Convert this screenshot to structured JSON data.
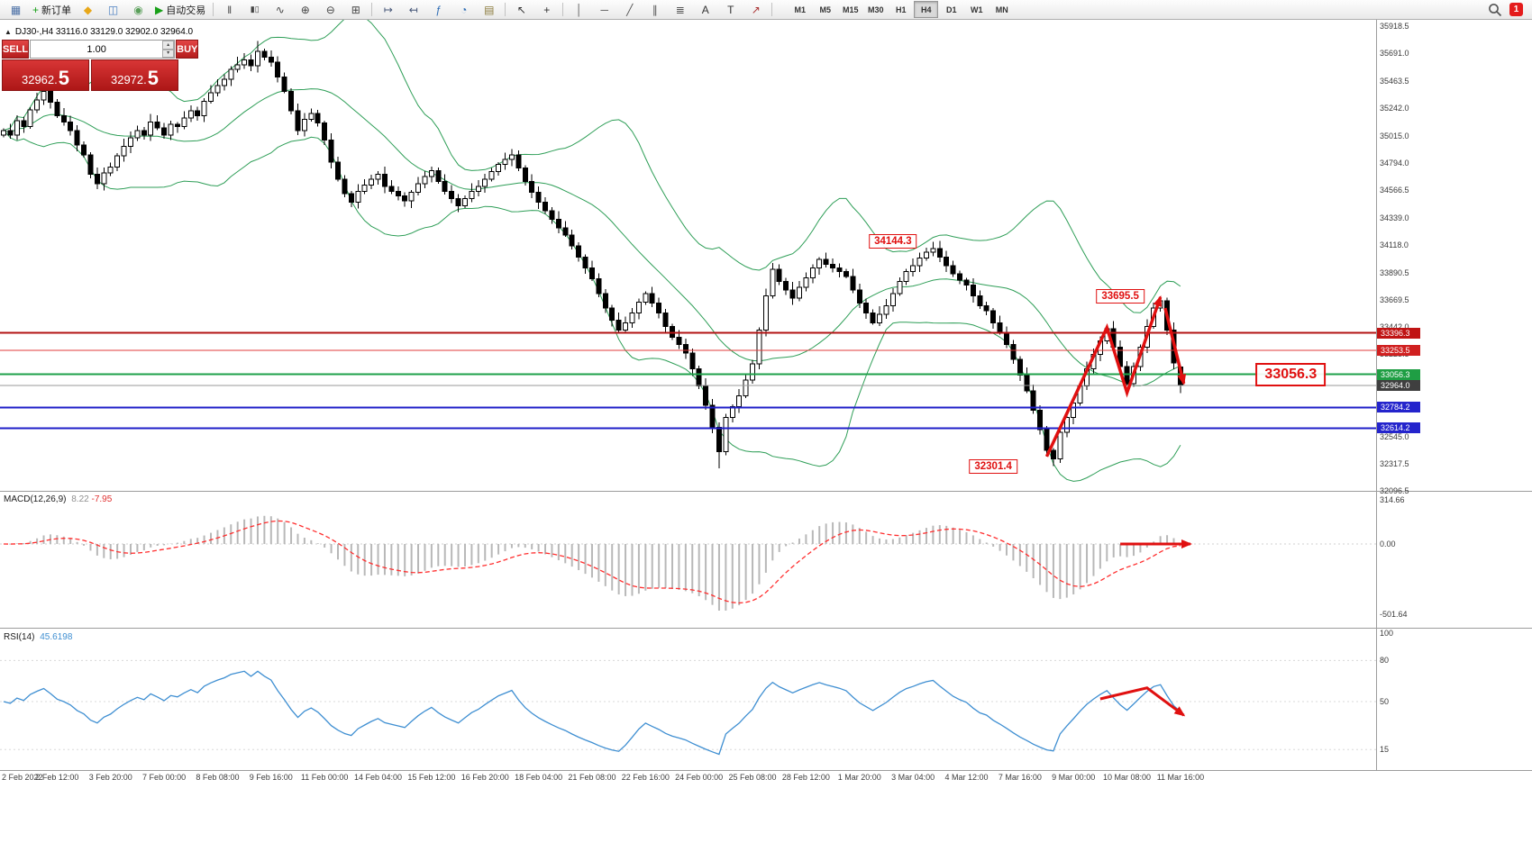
{
  "toolbar": {
    "items": [
      {
        "name": "new-chart-icon",
        "glyph": "▦",
        "color": "#4a6fa5"
      },
      {
        "name": "new-order-button",
        "icon": "plus-icon",
        "glyph": "+",
        "color": "#18a018",
        "label": "新订单"
      },
      {
        "name": "metaquotes-icon",
        "glyph": "◆",
        "color": "#e8a718"
      },
      {
        "name": "market-watch-icon",
        "glyph": "◫",
        "color": "#4a7fc1"
      },
      {
        "name": "data-window-icon",
        "glyph": "◉",
        "color": "#5a9f5a"
      },
      {
        "name": "autotrade-button",
        "icon": "play-icon",
        "glyph": "▶",
        "color": "#18a018",
        "label": "自动交易"
      },
      {
        "sep": true
      },
      {
        "name": "bar-chart-icon",
        "glyph": "‖",
        "color": "#444444"
      },
      {
        "name": "candlestick-chart-icon",
        "glyph": "▮▯",
        "color": "#444444"
      },
      {
        "name": "line-chart-icon",
        "glyph": "∿",
        "color": "#444444"
      },
      {
        "name": "zoom-in-icon",
        "glyph": "⊕",
        "color": "#444444"
      },
      {
        "name": "zoom-out-icon",
        "glyph": "⊖",
        "color": "#444444"
      },
      {
        "name": "tile-windows-icon",
        "glyph": "⊞",
        "color": "#444444"
      },
      {
        "sep": true
      },
      {
        "name": "auto-scroll-icon",
        "glyph": "↦",
        "color": "#445577"
      },
      {
        "name": "chart-shift-icon",
        "glyph": "↤",
        "color": "#445577"
      },
      {
        "name": "indicators-icon",
        "glyph": "ƒ",
        "color": "#2f6db5"
      },
      {
        "name": "periods-icon",
        "glyph": "◔",
        "color": "#2f6db5"
      },
      {
        "name": "templates-icon",
        "glyph": "▤",
        "color": "#8a7a3b"
      },
      {
        "sep": true
      },
      {
        "name": "cursor-icon",
        "glyph": "↖",
        "color": "#333333"
      },
      {
        "name": "crosshair-icon",
        "glyph": "+",
        "color": "#333333"
      },
      {
        "sep": true
      },
      {
        "name": "vertical-line-icon",
        "glyph": "│",
        "color": "#555555"
      },
      {
        "name": "horizontal-line-icon",
        "glyph": "─",
        "color": "#555555"
      },
      {
        "name": "trendline-icon",
        "glyph": "╱",
        "color": "#555555"
      },
      {
        "name": "channel-icon",
        "glyph": "∥",
        "color": "#555555"
      },
      {
        "name": "fibonacci-icon",
        "glyph": "≣",
        "color": "#555555"
      },
      {
        "name": "text-icon",
        "glyph": "A",
        "color": "#333333"
      },
      {
        "name": "label-icon",
        "glyph": "T",
        "color": "#333333"
      },
      {
        "name": "arrows-icon",
        "glyph": "↗",
        "color": "#aa3333"
      },
      {
        "sep": true
      }
    ],
    "timeframes": [
      "M1",
      "M5",
      "M15",
      "M30",
      "H1",
      "H4",
      "D1",
      "W1",
      "MN"
    ],
    "active_timeframe": "H4",
    "notification_count": "1"
  },
  "symbol_header": {
    "toggle_glyph": "▲",
    "text": "DJ30-,H4  33116.0 33129.0 32902.0 32964.0"
  },
  "trade_panel": {
    "sell_label": "SELL",
    "buy_label": "BUY",
    "lot": "1.00",
    "up_glyph": "▴",
    "down_glyph": "▾",
    "sell_main": "32962.",
    "sell_big": "5",
    "buy_main": "32972.",
    "buy_big": "5"
  },
  "chart_data": {
    "type": "candlestick",
    "symbol": "DJ30-",
    "timeframe": "H4",
    "ohlc_current": {
      "open": 33116.0,
      "high": 33129.0,
      "low": 32902.0,
      "close": 32964.0
    },
    "first_open": 35020,
    "closes": [
      35060,
      35020,
      35140,
      35090,
      35230,
      35310,
      35380,
      35290,
      35180,
      35130,
      35060,
      34940,
      34860,
      34700,
      34620,
      34710,
      34760,
      34850,
      34930,
      35000,
      35060,
      35020,
      35130,
      35080,
      35020,
      35110,
      35090,
      35160,
      35220,
      35180,
      35300,
      35370,
      35430,
      35480,
      35560,
      35600,
      35640,
      35590,
      35710,
      35660,
      35620,
      35500,
      35380,
      35220,
      35060,
      35150,
      35200,
      35120,
      34980,
      34800,
      34660,
      34540,
      34470,
      34560,
      34610,
      34660,
      34700,
      34600,
      34560,
      34520,
      34480,
      34550,
      34620,
      34680,
      34730,
      34640,
      34560,
      34500,
      34440,
      34500,
      34560,
      34600,
      34660,
      34720,
      34780,
      34820,
      34860,
      34750,
      34640,
      34550,
      34470,
      34400,
      34330,
      34260,
      34200,
      34110,
      34020,
      33930,
      33840,
      33720,
      33600,
      33500,
      33420,
      33480,
      33560,
      33650,
      33720,
      33640,
      33560,
      33450,
      33360,
      33300,
      33230,
      33100,
      32960,
      32800,
      32620,
      32420,
      32700,
      32790,
      32880,
      33010,
      33140,
      33420,
      33700,
      33920,
      33820,
      33750,
      33680,
      33770,
      33850,
      33930,
      34000,
      33960,
      33930,
      33900,
      33860,
      33750,
      33640,
      33560,
      33480,
      33550,
      33620,
      33720,
      33820,
      33900,
      33950,
      34010,
      34060,
      34090,
      34020,
      33950,
      33880,
      33830,
      33790,
      33700,
      33620,
      33580,
      33480,
      33400,
      33300,
      33180,
      33050,
      32920,
      32760,
      32600,
      32430,
      32360,
      32580,
      32700,
      32820,
      32960,
      33100,
      33220,
      33330,
      33430,
      33280,
      33120,
      32980,
      33120,
      33280,
      33450,
      33600,
      33660,
      33420,
      33150,
      32964
    ],
    "wick_overrides": {
      "38": {
        "high": 35795
      },
      "107": {
        "low": 32283
      },
      "139": {
        "high": 34144.3
      },
      "157": {
        "low": 32301.4
      },
      "173": {
        "high": 33695.5
      }
    },
    "bollinger": {
      "period": 20,
      "deviation": 2,
      "color": "#2e9e57"
    },
    "y_ticks": [
      35918.5,
      35691.0,
      35463.5,
      35242.0,
      35015.0,
      34794.0,
      34566.5,
      34339.0,
      34118.0,
      33890.5,
      33669.5,
      33442.0,
      33223.5,
      32995.5,
      32774.0,
      32545.0,
      32317.5,
      32096.5
    ],
    "hlines": [
      {
        "price": 33396.3,
        "color": "#b31414",
        "width": 2,
        "badge": "#c01414"
      },
      {
        "price": 33253.5,
        "color": "#e23b3b",
        "width": 1,
        "badge": "#d02020"
      },
      {
        "price": 33056.3,
        "color": "#1fa14a",
        "width": 2,
        "badge": "#1f9e44"
      },
      {
        "price": 32964.0,
        "color": "#999999",
        "width": 1,
        "badge": "#3f3f3f"
      },
      {
        "price": 32784.2,
        "color": "#1f1fc8",
        "width": 2,
        "badge": "#2424cc"
      },
      {
        "price": 32614.2,
        "color": "#1f1fc8",
        "width": 2,
        "badge": "#2424cc"
      }
    ],
    "x_labels": [
      "2 Feb 2022",
      "2 Feb 12:00",
      "3 Feb 20:00",
      "7 Feb 00:00",
      "8 Feb 08:00",
      "9 Feb 16:00",
      "11 Feb 00:00",
      "14 Feb 04:00",
      "15 Feb 12:00",
      "16 Feb 20:00",
      "18 Feb 04:00",
      "21 Feb 08:00",
      "22 Feb 16:00",
      "24 Feb 00:00",
      "25 Feb 08:00",
      "28 Feb 12:00",
      "1 Mar 20:00",
      "3 Mar 04:00",
      "4 Mar 12:00",
      "7 Mar 16:00",
      "9 Mar 00:00",
      "10 Mar 08:00",
      "11 Mar 16:00"
    ],
    "bars_per_label": 8,
    "macd": {
      "name": "MACD(12,26,9)",
      "values": [
        "8.22",
        "-7.95"
      ],
      "ticks": [
        "314.66",
        "0.00",
        "-501.64"
      ],
      "tick_vals": [
        314.66,
        0,
        -501.64
      ],
      "histogram_color": "#b8b8b8",
      "signal_color": "#ff2e2e"
    },
    "rsi": {
      "name": "RSI(14)",
      "value": "45.6198",
      "ticks": [
        100,
        80,
        50,
        15
      ],
      "color": "#3f8fd2"
    },
    "annotations": {
      "color": "#e01010",
      "boxes": [
        {
          "text": "34144.3",
          "bar": 133,
          "price": 34150,
          "large": false
        },
        {
          "text": "33695.5",
          "bar": 167,
          "price": 33700,
          "large": false
        },
        {
          "text": "32301.4",
          "bar": 148,
          "price": 32300,
          "large": false
        },
        {
          "text": "33056.3",
          "bar": 192.5,
          "price": 33056.3,
          "large": true
        }
      ],
      "price_arrows": [
        {
          "points": [
            [
              156,
              32380
            ],
            [
              165,
              33440
            ],
            [
              168,
              32905
            ],
            [
              173,
              33690
            ]
          ]
        },
        {
          "points": [
            [
              173.7,
              33600
            ],
            [
              176.5,
              32980
            ]
          ]
        }
      ],
      "macd_arrows": [
        {
          "points": [
            [
              167,
              0
            ],
            [
              177.5,
              0
            ]
          ]
        }
      ],
      "rsi_arrows": [
        {
          "points": [
            [
              164,
              52
            ],
            [
              171,
              60
            ],
            [
              176.5,
              40
            ]
          ]
        }
      ]
    }
  }
}
